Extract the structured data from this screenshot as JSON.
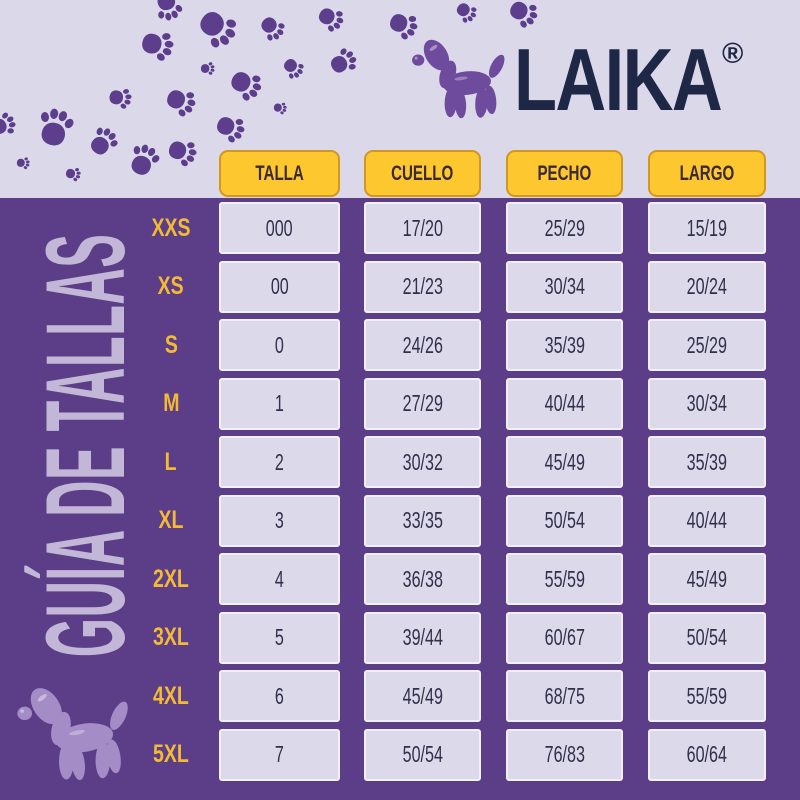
{
  "brand": {
    "name": "LAIKA",
    "registered_mark": "®"
  },
  "sidebar_title": "GUÍA DE TALLAS",
  "table": {
    "headers": [
      "TALLA",
      "CUELLO",
      "PECHO",
      "LARGO"
    ],
    "rows": [
      {
        "label": "XXS",
        "talla": "000",
        "cuello": "17/20",
        "pecho": "25/29",
        "largo": "15/19"
      },
      {
        "label": "XS",
        "talla": "00",
        "cuello": "21/23",
        "pecho": "30/34",
        "largo": "20/24"
      },
      {
        "label": "S",
        "talla": "0",
        "cuello": "24/26",
        "pecho": "35/39",
        "largo": "25/29"
      },
      {
        "label": "M",
        "talla": "1",
        "cuello": "27/29",
        "pecho": "40/44",
        "largo": "30/34"
      },
      {
        "label": "L",
        "talla": "2",
        "cuello": "30/32",
        "pecho": "45/49",
        "largo": "35/39"
      },
      {
        "label": "XL",
        "talla": "3",
        "cuello": "33/35",
        "pecho": "50/54",
        "largo": "40/44"
      },
      {
        "label": "2XL",
        "talla": "4",
        "cuello": "36/38",
        "pecho": "55/59",
        "largo": "45/49"
      },
      {
        "label": "3XL",
        "talla": "5",
        "cuello": "39/44",
        "pecho": "60/67",
        "largo": "50/54"
      },
      {
        "label": "4XL",
        "talla": "6",
        "cuello": "45/49",
        "pecho": "68/75",
        "largo": "55/59"
      },
      {
        "label": "5XL",
        "talla": "7",
        "cuello": "50/54",
        "pecho": "76/83",
        "largo": "60/64"
      }
    ]
  },
  "icons": {
    "paw_print": "paw-print-icon",
    "balloon_dog": "balloon-dog-icon"
  },
  "colors": {
    "background_purple": "#5b3e87",
    "band_lavender": "#dbd9e9",
    "header_yellow": "#fdc72f",
    "header_border": "#d1971f",
    "label_yellow": "#f3ba35",
    "cell_lavender": "#dcd9ea",
    "cell_text_dark": "#31304a",
    "header_text": "#3c2a3b",
    "logo_navy": "#1e2745",
    "title_lavender": "#c3b7d8",
    "paw_purple": "#5c3e8c",
    "logo_dog_purple": "#6f4b9e",
    "corner_dog_lavender": "#a48cc6"
  }
}
